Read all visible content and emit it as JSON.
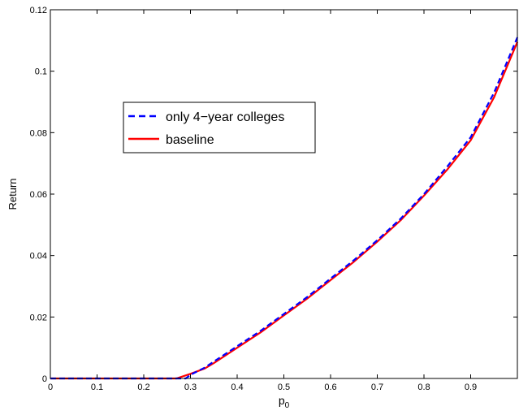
{
  "chart_data": {
    "type": "line",
    "xlabel": "p",
    "xlabel_subscript": "0",
    "ylabel": "Return",
    "xlim": [
      0,
      1
    ],
    "ylim": [
      0,
      0.12
    ],
    "x_ticks": [
      "0",
      "0.1",
      "0.2",
      "0.3",
      "0.4",
      "0.5",
      "0.6",
      "0.7",
      "0.8",
      "0.9"
    ],
    "x_tick_values": [
      0,
      0.1,
      0.2,
      0.3,
      0.4,
      0.5,
      0.6,
      0.7,
      0.8,
      0.9
    ],
    "y_ticks": [
      "0",
      "0.02",
      "0.04",
      "0.06",
      "0.08",
      "0.1",
      "0.12"
    ],
    "y_tick_values": [
      0,
      0.02,
      0.04,
      0.06,
      0.08,
      0.1,
      0.12
    ],
    "grid": false,
    "legend_position": "upper-left",
    "series": [
      {
        "name": "only 4−year colleges",
        "color": "#0000ff",
        "style": "dashed",
        "x": [
          0,
          0.1,
          0.2,
          0.25,
          0.29,
          0.3,
          0.33,
          0.35,
          0.4,
          0.45,
          0.5,
          0.55,
          0.6,
          0.65,
          0.7,
          0.75,
          0.8,
          0.85,
          0.9,
          0.95,
          1.0
        ],
        "y": [
          0,
          0,
          0,
          0,
          0,
          0.0012,
          0.0035,
          0.0055,
          0.0105,
          0.0155,
          0.021,
          0.0265,
          0.0325,
          0.0385,
          0.045,
          0.052,
          0.06,
          0.069,
          0.0785,
          0.093,
          0.111
        ]
      },
      {
        "name": "baseline",
        "color": "#ff0000",
        "style": "solid",
        "x": [
          0,
          0.1,
          0.2,
          0.27,
          0.3,
          0.33,
          0.35,
          0.4,
          0.45,
          0.5,
          0.55,
          0.6,
          0.65,
          0.7,
          0.75,
          0.8,
          0.85,
          0.9,
          0.95,
          1.0
        ],
        "y": [
          0,
          0,
          0,
          0,
          0.0015,
          0.0032,
          0.005,
          0.01,
          0.015,
          0.0205,
          0.026,
          0.032,
          0.038,
          0.0445,
          0.0515,
          0.0595,
          0.068,
          0.0775,
          0.0915,
          0.1095
        ]
      }
    ]
  }
}
